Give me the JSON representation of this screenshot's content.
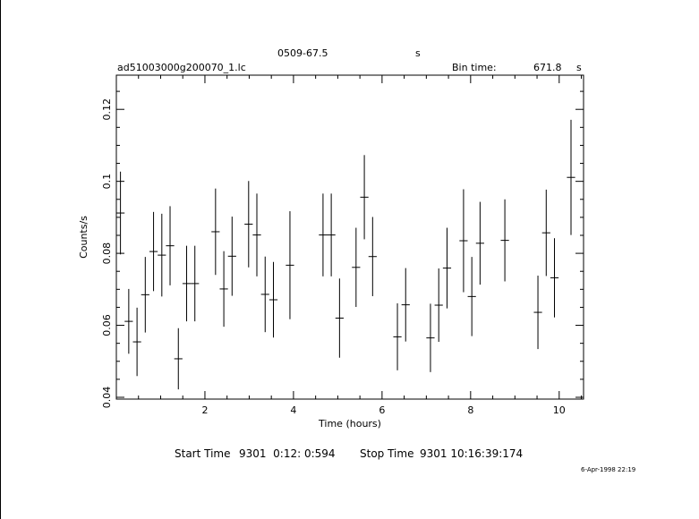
{
  "header": {
    "source": "0509-67.5",
    "units_label": "s",
    "file_name": "ad51003000g200070_1.lc",
    "bin_time_label": "Bin time:",
    "bin_time_value": "671.8",
    "bin_time_unit": "s"
  },
  "footer": {
    "start_label": "Start Time",
    "start_value": "9301  0:12: 0:594",
    "stop_label": "Stop Time",
    "stop_value": "9301 10:16:39:174",
    "stamp": "6-Apr-1998 22:19"
  },
  "chart_data": {
    "type": "scatter",
    "title": "0509-67.5",
    "xlabel": "Time (hours)",
    "ylabel": "Counts/s",
    "xlim": [
      0.0,
      10.55
    ],
    "ylim": [
      0.0395,
      0.1295
    ],
    "grid": false,
    "x_ticks": [
      2,
      4,
      6,
      8,
      10
    ],
    "x_tick_labels": [
      "2",
      "4",
      "6",
      "8",
      "10"
    ],
    "y_ticks": [
      0.04,
      0.06,
      0.08,
      0.1,
      0.12
    ],
    "y_tick_labels": [
      "0.04",
      "0.06",
      "0.08",
      "0.1",
      "0.12"
    ],
    "points": [
      {
        "x": 0.093,
        "y": 0.0912,
        "xerr": 0.093,
        "yerr": 0.0115
      },
      {
        "x": 0.28,
        "y": 0.0611,
        "xerr": 0.093,
        "yerr": 0.009
      },
      {
        "x": 0.467,
        "y": 0.0554,
        "xerr": 0.093,
        "yerr": 0.0095
      },
      {
        "x": 0.653,
        "y": 0.0685,
        "xerr": 0.093,
        "yerr": 0.0105
      },
      {
        "x": 0.84,
        "y": 0.0805,
        "xerr": 0.093,
        "yerr": 0.011
      },
      {
        "x": 1.027,
        "y": 0.0795,
        "xerr": 0.093,
        "yerr": 0.0115
      },
      {
        "x": 1.213,
        "y": 0.0821,
        "xerr": 0.093,
        "yerr": 0.011
      },
      {
        "x": 1.4,
        "y": 0.0507,
        "xerr": 0.093,
        "yerr": 0.0085
      },
      {
        "x": 1.587,
        "y": 0.0716,
        "xerr": 0.093,
        "yerr": 0.0105
      },
      {
        "x": 1.773,
        "y": 0.0716,
        "xerr": 0.093,
        "yerr": 0.0105
      },
      {
        "x": 2.24,
        "y": 0.086,
        "xerr": 0.093,
        "yerr": 0.012
      },
      {
        "x": 2.427,
        "y": 0.0701,
        "xerr": 0.093,
        "yerr": 0.0105
      },
      {
        "x": 2.613,
        "y": 0.0792,
        "xerr": 0.093,
        "yerr": 0.011
      },
      {
        "x": 2.987,
        "y": 0.0881,
        "xerr": 0.093,
        "yerr": 0.012
      },
      {
        "x": 3.173,
        "y": 0.0851,
        "xerr": 0.093,
        "yerr": 0.0115
      },
      {
        "x": 3.36,
        "y": 0.0686,
        "xerr": 0.093,
        "yerr": 0.0105
      },
      {
        "x": 3.547,
        "y": 0.0671,
        "xerr": 0.093,
        "yerr": 0.0105
      },
      {
        "x": 3.92,
        "y": 0.0767,
        "xerr": 0.093,
        "yerr": 0.015
      },
      {
        "x": 4.667,
        "y": 0.0851,
        "xerr": 0.093,
        "yerr": 0.0115
      },
      {
        "x": 4.853,
        "y": 0.0851,
        "xerr": 0.093,
        "yerr": 0.0115
      },
      {
        "x": 5.04,
        "y": 0.062,
        "xerr": 0.093,
        "yerr": 0.011
      },
      {
        "x": 5.413,
        "y": 0.0761,
        "xerr": 0.093,
        "yerr": 0.011
      },
      {
        "x": 5.6,
        "y": 0.0956,
        "xerr": 0.093,
        "yerr": 0.0117
      },
      {
        "x": 5.787,
        "y": 0.0791,
        "xerr": 0.093,
        "yerr": 0.011
      },
      {
        "x": 6.347,
        "y": 0.0568,
        "xerr": 0.093,
        "yerr": 0.0093
      },
      {
        "x": 6.533,
        "y": 0.0657,
        "xerr": 0.093,
        "yerr": 0.0102
      },
      {
        "x": 7.093,
        "y": 0.0565,
        "xerr": 0.093,
        "yerr": 0.0095
      },
      {
        "x": 7.28,
        "y": 0.0656,
        "xerr": 0.093,
        "yerr": 0.0102
      },
      {
        "x": 7.467,
        "y": 0.0759,
        "xerr": 0.093,
        "yerr": 0.0112
      },
      {
        "x": 7.84,
        "y": 0.0835,
        "xerr": 0.093,
        "yerr": 0.0143
      },
      {
        "x": 8.027,
        "y": 0.068,
        "xerr": 0.093,
        "yerr": 0.011
      },
      {
        "x": 8.213,
        "y": 0.0828,
        "xerr": 0.093,
        "yerr": 0.0115
      },
      {
        "x": 8.773,
        "y": 0.0836,
        "xerr": 0.093,
        "yerr": 0.0114
      },
      {
        "x": 9.52,
        "y": 0.0636,
        "xerr": 0.093,
        "yerr": 0.0102
      },
      {
        "x": 9.707,
        "y": 0.0857,
        "xerr": 0.093,
        "yerr": 0.012
      },
      {
        "x": 9.893,
        "y": 0.0732,
        "xerr": 0.093,
        "yerr": 0.011
      },
      {
        "x": 10.267,
        "y": 0.1011,
        "xerr": 0.093,
        "yerr": 0.016
      }
    ]
  }
}
